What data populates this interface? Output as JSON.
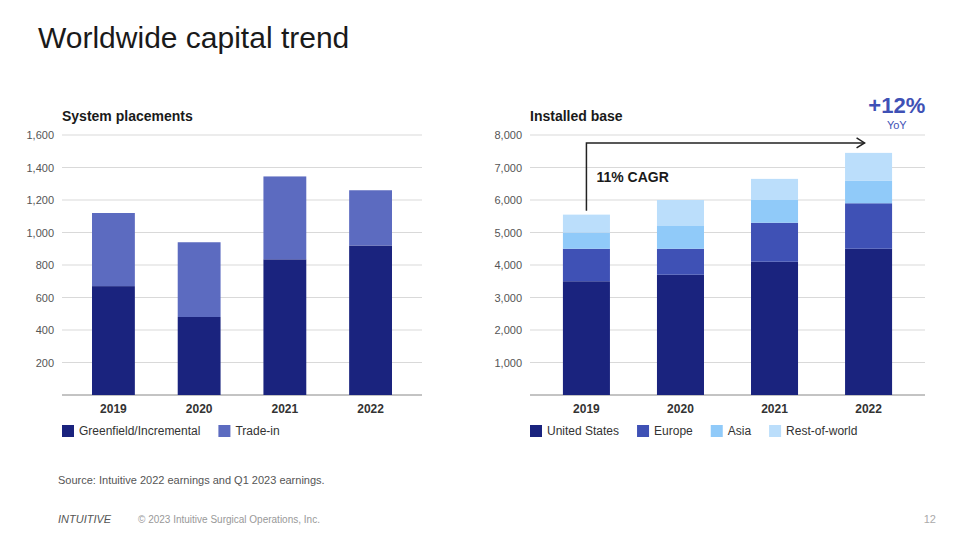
{
  "title": "Worldwide capital trend",
  "source": "Source: Intuitive 2022 earnings and Q1 2023 earnings.",
  "brand": "INTUITIVE",
  "footer": "© 2023 Intuitive Surgical Operations, Inc.",
  "page_number": "12",
  "chart_data": [
    {
      "type": "bar",
      "stacked": true,
      "title": "System placements",
      "categories": [
        "2019",
        "2020",
        "2021",
        "2022"
      ],
      "series": [
        {
          "name": "Greenfield/Incremental",
          "color": "#1a237e",
          "values": [
            670,
            480,
            835,
            920
          ]
        },
        {
          "name": "Trade-in",
          "color": "#5c6bc0",
          "values": [
            450,
            460,
            510,
            340
          ]
        }
      ],
      "ylim": [
        0,
        1600
      ],
      "yticks": [
        200,
        400,
        600,
        800,
        {
          "value": 1000,
          "label": "1,000"
        },
        {
          "value": 1200,
          "label": "1,200"
        },
        {
          "value": 1400,
          "label": "1,400"
        },
        {
          "value": 1600,
          "label": "1,600"
        }
      ],
      "grid": true,
      "legend": "bottom"
    },
    {
      "type": "bar",
      "stacked": true,
      "title": "Installed base",
      "categories": [
        "2019",
        "2020",
        "2021",
        "2022"
      ],
      "series": [
        {
          "name": "United States",
          "color": "#1a237e",
          "values": [
            3500,
            3700,
            4100,
            4500
          ]
        },
        {
          "name": "Europe",
          "color": "#3f51b5",
          "values": [
            1000,
            800,
            1200,
            1400
          ]
        },
        {
          "name": "Asia",
          "color": "#90caf9",
          "values": [
            500,
            700,
            700,
            700
          ]
        },
        {
          "name": "Rest-of-world",
          "color": "#bbdefb",
          "values": [
            550,
            800,
            650,
            850
          ]
        }
      ],
      "ylim": [
        0,
        8000
      ],
      "yticks": [
        {
          "value": 1000,
          "label": "1,000"
        },
        {
          "value": 2000,
          "label": "2,000"
        },
        {
          "value": 3000,
          "label": "3,000"
        },
        {
          "value": 4000,
          "label": "4,000"
        },
        {
          "value": 5000,
          "label": "5,000"
        },
        {
          "value": 6000,
          "label": "6,000"
        },
        {
          "value": 7000,
          "label": "7,000"
        },
        {
          "value": 8000,
          "label": "8,000"
        }
      ],
      "grid": true,
      "legend": "bottom",
      "annotations": [
        "+12%",
        "YoY",
        "11% CAGR"
      ]
    }
  ]
}
